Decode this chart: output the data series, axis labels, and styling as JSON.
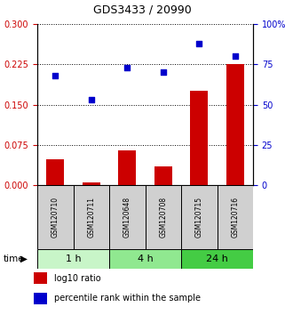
{
  "title": "GDS3433 / 20990",
  "samples": [
    "GSM120710",
    "GSM120711",
    "GSM120648",
    "GSM120708",
    "GSM120715",
    "GSM120716"
  ],
  "log10_ratio": [
    0.048,
    0.005,
    0.065,
    0.035,
    0.175,
    0.225
  ],
  "percentile_rank": [
    68,
    53,
    73,
    70,
    88,
    80
  ],
  "time_groups": [
    {
      "label": "1 h",
      "start": 0,
      "end": 2,
      "color": "#c8f5c8"
    },
    {
      "label": "4 h",
      "start": 2,
      "end": 4,
      "color": "#90e890"
    },
    {
      "label": "24 h",
      "start": 4,
      "end": 6,
      "color": "#44cc44"
    }
  ],
  "left_yticks": [
    0,
    0.075,
    0.15,
    0.225,
    0.3
  ],
  "left_ylim": [
    0,
    0.3
  ],
  "right_yticks": [
    0,
    25,
    50,
    75,
    100
  ],
  "right_ylim": [
    0,
    100
  ],
  "bar_color": "#cc0000",
  "dot_color": "#0000cc",
  "label_color_left": "#cc0000",
  "label_color_right": "#0000cc",
  "bg_color_sample": "#d0d0d0",
  "title_fontsize": 9,
  "tick_fontsize": 7,
  "sample_fontsize": 5.5,
  "time_fontsize": 8,
  "legend_fontsize": 7
}
